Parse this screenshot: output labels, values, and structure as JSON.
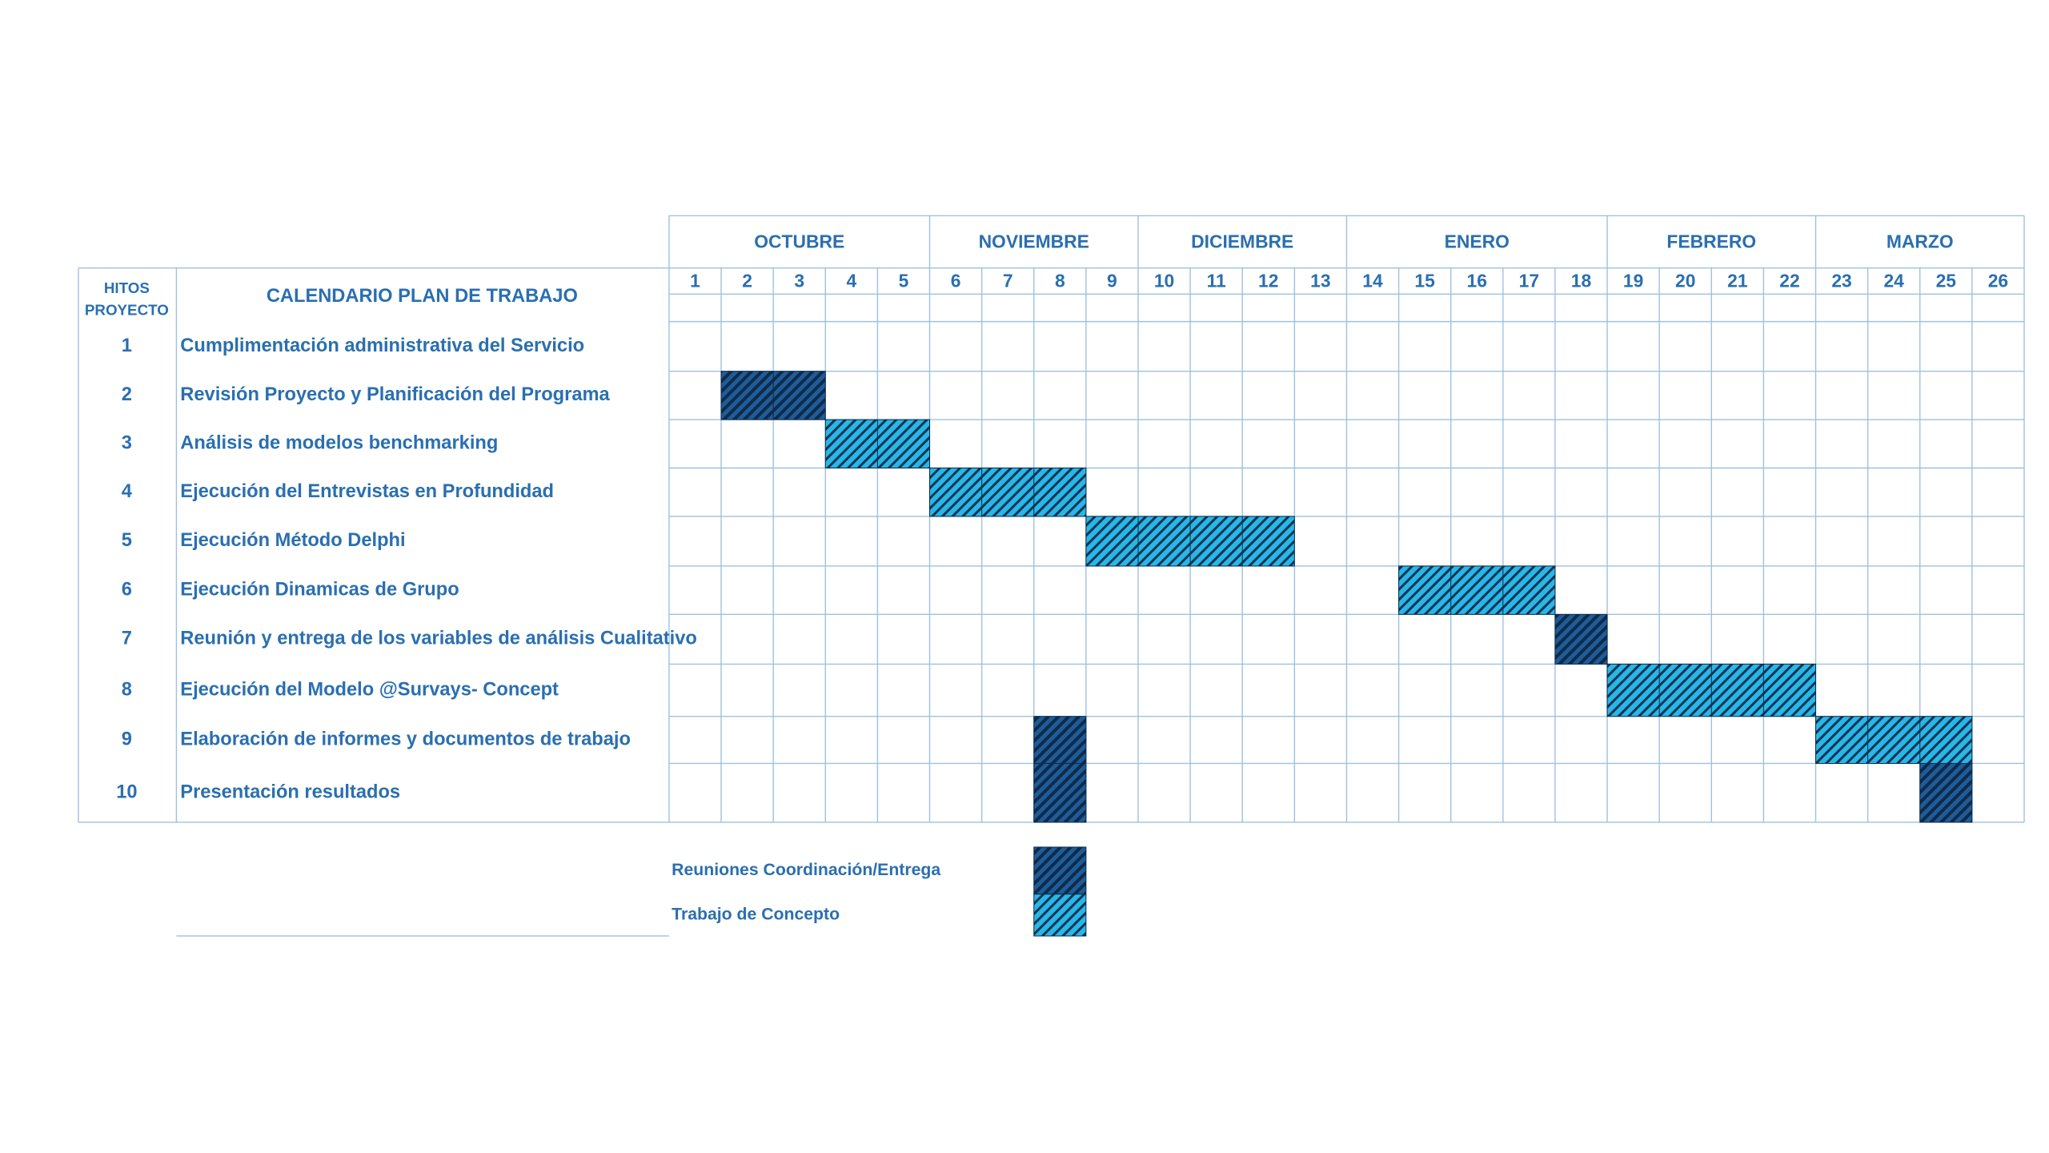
{
  "header": {
    "hitos_line1": "HITOS",
    "hitos_line2": "PROYECTO",
    "title": "CALENDARIO PLAN DE TRABAJO"
  },
  "months": [
    {
      "name": "OCTUBRE",
      "weeks": 5
    },
    {
      "name": "NOVIEMBRE",
      "weeks": 4
    },
    {
      "name": "DICIEMBRE",
      "weeks": 4
    },
    {
      "name": "ENERO",
      "weeks": 5
    },
    {
      "name": "FEBRERO",
      "weeks": 4
    },
    {
      "name": "MARZO",
      "weeks": 4
    }
  ],
  "weeks": [
    "1",
    "2",
    "3",
    "4",
    "5",
    "6",
    "7",
    "8",
    "9",
    "10",
    "11",
    "12",
    "13",
    "14",
    "15",
    "16",
    "17",
    "18",
    "19",
    "20",
    "21",
    "22",
    "23",
    "24",
    "25",
    "26"
  ],
  "tasks": [
    {
      "num": "1",
      "label": "Cumplimentación administrativa del Servicio",
      "bars": []
    },
    {
      "num": "2",
      "label": "Revisión Proyecto y Planificación del Programa",
      "bars": [
        {
          "start": 2,
          "end": 3,
          "type": "reunion"
        }
      ]
    },
    {
      "num": "3",
      "label": "Análisis de modelos benchmarking",
      "bars": [
        {
          "start": 4,
          "end": 5,
          "type": "trabajo"
        }
      ]
    },
    {
      "num": "4",
      "label": "Ejecución del Entrevistas en Profundidad",
      "bars": [
        {
          "start": 6,
          "end": 8,
          "type": "trabajo"
        }
      ]
    },
    {
      "num": "5",
      "label": "Ejecución Método Delphi",
      "bars": [
        {
          "start": 9,
          "end": 12,
          "type": "trabajo"
        }
      ]
    },
    {
      "num": "6",
      "label": "Ejecución Dinamicas de Grupo",
      "bars": [
        {
          "start": 15,
          "end": 17,
          "type": "trabajo"
        }
      ]
    },
    {
      "num": "7",
      "label": "Reunión y entrega de los variables de análisis Cualitativo",
      "bars": [
        {
          "start": 18,
          "end": 18,
          "type": "reunion"
        }
      ]
    },
    {
      "num": "8",
      "label": "Ejecución del Modelo @Survays- Concept",
      "bars": [
        {
          "start": 19,
          "end": 22,
          "type": "trabajo"
        }
      ]
    },
    {
      "num": "9",
      "label": "Elaboración de informes y documentos de trabajo",
      "bars": [
        {
          "start": 8,
          "end": 8,
          "type": "reunion"
        },
        {
          "start": 23,
          "end": 25,
          "type": "trabajo"
        }
      ]
    },
    {
      "num": "10",
      "label": "Presentación resultados",
      "bars": [
        {
          "start": 8,
          "end": 8,
          "type": "reunion"
        },
        {
          "start": 25,
          "end": 25,
          "type": "reunion"
        }
      ]
    }
  ],
  "legend": [
    {
      "label": "Reuniones Coordinación/Entrega",
      "type": "reunion"
    },
    {
      "label": "Trabajo de Concepto",
      "type": "trabajo"
    }
  ],
  "colors": {
    "text": "#2a6fb0",
    "grid": "#9ec1e0",
    "reunion": "#1f5c99",
    "trabajo": "#29b6e8",
    "hatch": "#0d2b4a"
  }
}
